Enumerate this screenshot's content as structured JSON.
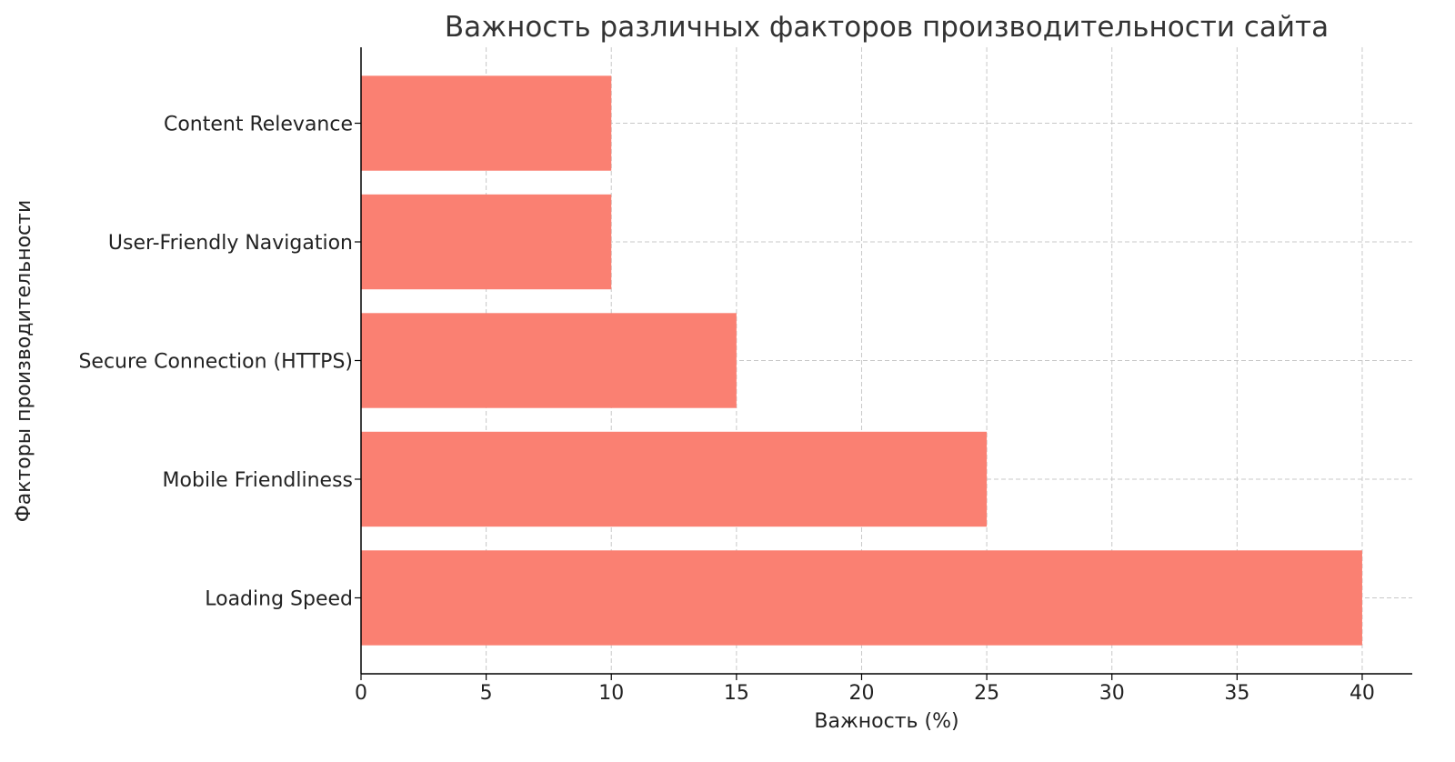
{
  "chart_data": {
    "type": "bar",
    "orientation": "horizontal",
    "title": "Важность различных факторов производительности сайта",
    "xlabel": "Важность (%)",
    "ylabel": "Факторы производительности",
    "categories": [
      "Loading Speed",
      "Mobile Friendliness",
      "Secure Connection (HTTPS)",
      "User-Friendly Navigation",
      "Content Relevance"
    ],
    "values": [
      40,
      25,
      15,
      10,
      10
    ],
    "xlim": [
      0,
      42
    ],
    "xticks": [
      0,
      5,
      10,
      15,
      20,
      25,
      30,
      35,
      40
    ],
    "grid": true,
    "bar_color": "#FA8072"
  }
}
